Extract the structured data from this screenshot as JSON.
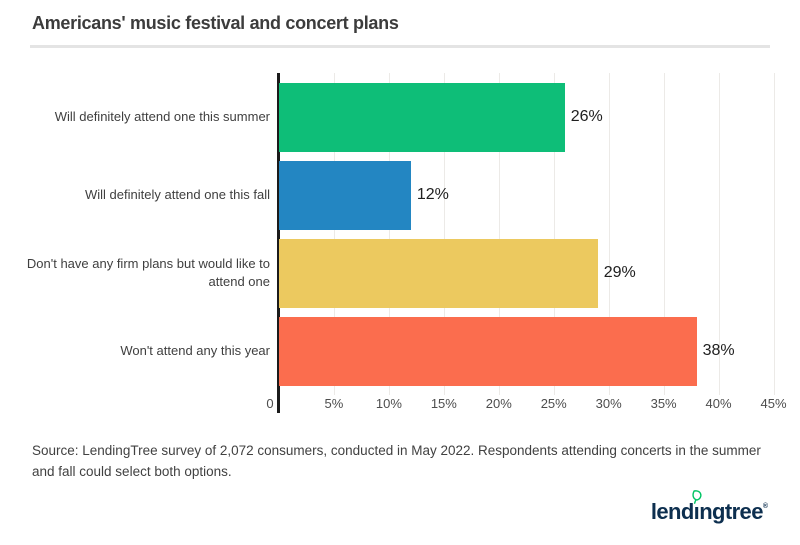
{
  "title": "Americans' music festival and concert plans",
  "source_note": "Source: LendingTree survey of 2,072 consumers, conducted in May 2022. Respondents attending concerts in the summer and fall could select both options.",
  "logo": {
    "text_pre": "lend",
    "text_i": "ı",
    "text_post": "ngtree",
    "registered": "®",
    "text_color": "#0d2f4f",
    "leaf_color": "#00c464"
  },
  "colors": {
    "axis": "#1b1b1b",
    "gridline": "#eceae7",
    "divider": "#e4e4e4",
    "title_text": "#3c3c3c",
    "label_text": "#3f3f3f",
    "tick_text": "#4d4d4d"
  },
  "chart_data": {
    "type": "bar",
    "orientation": "horizontal",
    "title": "Americans' music festival and concert plans",
    "categories": [
      "Will definitely attend one this summer",
      "Will definitely attend one this fall",
      "Don't have any firm plans but would like to attend one",
      "Won't attend any this year"
    ],
    "values": [
      26,
      12,
      29,
      38
    ],
    "value_labels": [
      "26%",
      "12%",
      "29%",
      "38%"
    ],
    "bar_colors": [
      "#0ebe78",
      "#2386c2",
      "#ecc95f",
      "#fb6d4e"
    ],
    "x_tick_labels": [
      "0",
      "5%",
      "10%",
      "15%",
      "20%",
      "25%",
      "30%",
      "35%",
      "40%",
      "45%"
    ],
    "x_tick_values": [
      0,
      5,
      10,
      15,
      20,
      25,
      30,
      35,
      40,
      45
    ],
    "xlim": [
      0,
      46.5
    ],
    "xlabel": "",
    "ylabel": "",
    "grid": "vertical",
    "legend": "none"
  }
}
